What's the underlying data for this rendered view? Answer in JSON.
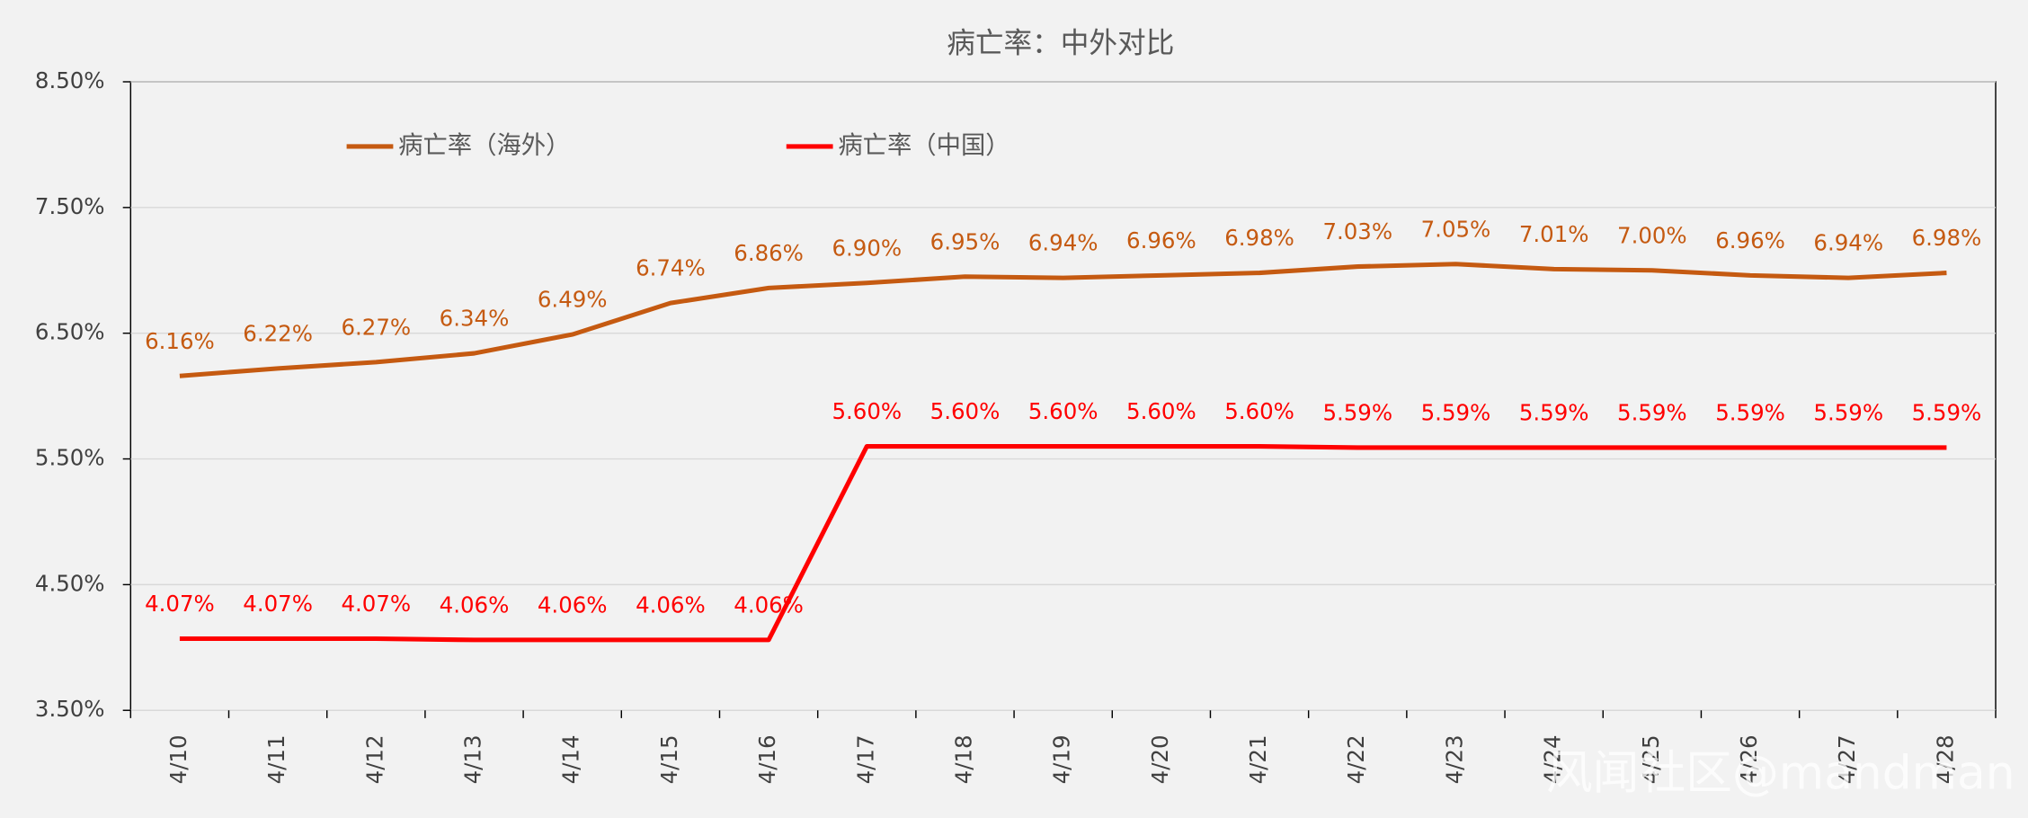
{
  "chart_data": {
    "type": "line",
    "title": "病亡率：中外对比",
    "categories": [
      "4/10",
      "4/11",
      "4/12",
      "4/13",
      "4/14",
      "4/15",
      "4/16",
      "4/17",
      "4/18",
      "4/19",
      "4/20",
      "4/21",
      "4/22",
      "4/23",
      "4/24",
      "4/25",
      "4/26",
      "4/27",
      "4/28"
    ],
    "series": [
      {
        "name": "病亡率（海外）",
        "color": "#c55a11",
        "values": [
          6.16,
          6.22,
          6.27,
          6.34,
          6.49,
          6.74,
          6.86,
          6.9,
          6.95,
          6.94,
          6.96,
          6.98,
          7.03,
          7.05,
          7.01,
          7.0,
          6.96,
          6.94,
          6.98
        ],
        "value_labels": [
          "6.16%",
          "6.22%",
          "6.27%",
          "6.34%",
          "6.49%",
          "6.74%",
          "6.86%",
          "6.90%",
          "6.95%",
          "6.94%",
          "6.96%",
          "6.98%",
          "7.03%",
          "7.05%",
          "7.01%",
          "7.00%",
          "6.96%",
          "6.94%",
          "6.98%"
        ]
      },
      {
        "name": "病亡率（中国）",
        "color": "#ff0000",
        "values": [
          4.07,
          4.07,
          4.07,
          4.06,
          4.06,
          4.06,
          4.06,
          5.6,
          5.6,
          5.6,
          5.6,
          5.6,
          5.59,
          5.59,
          5.59,
          5.59,
          5.59,
          5.59,
          5.59
        ],
        "value_labels": [
          "4.07%",
          "4.07%",
          "4.07%",
          "4.06%",
          "4.06%",
          "4.06%",
          "4.06%",
          "5.60%",
          "5.60%",
          "5.60%",
          "5.60%",
          "5.60%",
          "5.59%",
          "5.59%",
          "5.59%",
          "5.59%",
          "5.59%",
          "5.59%",
          "5.59%"
        ]
      }
    ],
    "ylim": [
      3.5,
      8.5
    ],
    "yticks": [
      {
        "value": 3.5,
        "label": "3.50%"
      },
      {
        "value": 4.5,
        "label": "4.50%"
      },
      {
        "value": 5.5,
        "label": "5.50%"
      },
      {
        "value": 6.5,
        "label": "6.50%"
      },
      {
        "value": 7.5,
        "label": "7.50%"
      },
      {
        "value": 8.5,
        "label": "8.50%"
      }
    ],
    "grid": true,
    "legend": "top",
    "watermark": "风闻社区@mandman"
  }
}
